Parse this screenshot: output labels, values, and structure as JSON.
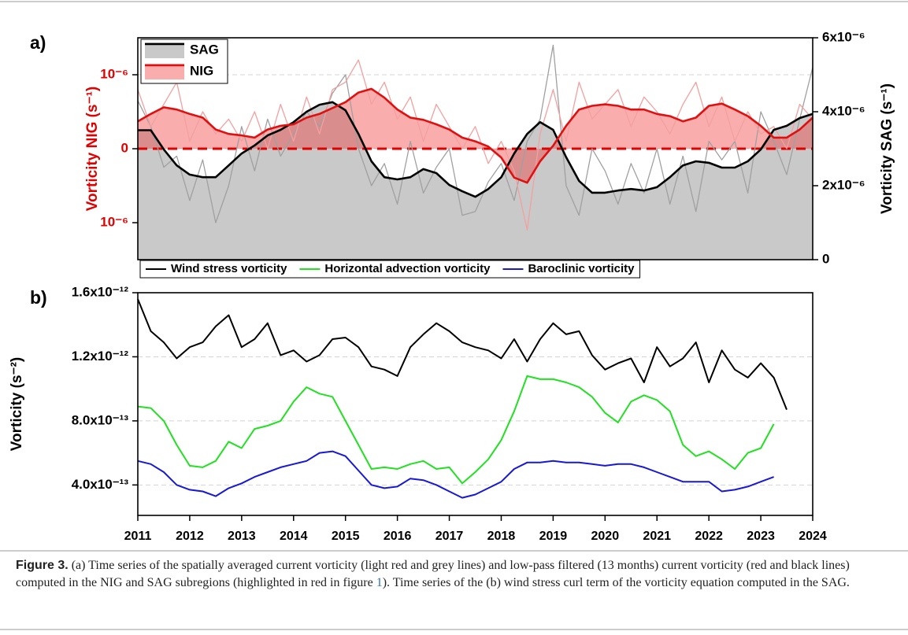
{
  "figure": {
    "caption": {
      "label": "Figure 3.",
      "text": "(a) Time series of the spatially averaged current vorticity (light red and grey lines) and low-pass filtered (13 months) current vorticity (red and black lines) computed in the NIG and SAG subregions (highlighted in red in figure ",
      "link": "1",
      "text_end": "). Time series of the (b) wind stress curl term of the vorticity equation computed in the SAG."
    }
  },
  "chart_data": [
    {
      "type": "line",
      "label": "a)",
      "ylabel": "Vorticity NIG (s⁻¹)",
      "y2label": "Vorticity SAG (s⁻¹)",
      "ycolor": "#e00000",
      "x": [
        2011,
        2011.25,
        2011.5,
        2011.75,
        2012,
        2012.25,
        2012.5,
        2012.75,
        2013,
        2013.25,
        2013.5,
        2013.75,
        2014,
        2014.25,
        2014.5,
        2014.75,
        2015,
        2015.25,
        2015.5,
        2015.75,
        2016,
        2016.25,
        2016.5,
        2016.75,
        2017,
        2017.25,
        2017.5,
        2017.75,
        2018,
        2018.25,
        2018.5,
        2018.75,
        2019,
        2019.25,
        2019.5,
        2019.75,
        2020,
        2020.25,
        2020.5,
        2020.75,
        2021,
        2021.25,
        2021.5,
        2021.75,
        2022,
        2022.25,
        2022.5,
        2022.75,
        2023,
        2023.25,
        2023.5,
        2023.75,
        2024
      ],
      "xlim": [
        2011,
        2024
      ],
      "ylim": [
        -1.5e-06,
        1.5e-06
      ],
      "yticks": [
        {
          "value": 1e-06,
          "label": "10⁻⁶"
        },
        0,
        {
          "value": -1e-06,
          "label": "10⁻⁶"
        }
      ],
      "y2lim": [
        0,
        6e-06
      ],
      "y2ticks": [
        0,
        {
          "value": 2e-06,
          "label": "2x10⁻⁶"
        },
        {
          "value": 4e-06,
          "label": "4x10⁻⁶"
        },
        {
          "value": 6e-06,
          "label": "6x10⁻⁶"
        }
      ],
      "grid": true,
      "legend": "upper left",
      "reference_line": {
        "value": 0,
        "color": "#e00000"
      },
      "series": [
        {
          "color": "#a0a0a0",
          "line_width": 1.3,
          "axis": "y2",
          "values": [
            4.3e-06,
            3.6e-06,
            2.5e-06,
            2.8e-06,
            1.6e-06,
            2.7e-06,
            1e-06,
            2e-06,
            3.6e-06,
            2.4e-06,
            3.8e-06,
            2.8e-06,
            3.4e-06,
            4e-06,
            3.6e-06,
            4.5e-06,
            5e-06,
            3e-06,
            2e-06,
            2.6e-06,
            1.5e-06,
            3.2e-06,
            1.8e-06,
            2.5e-06,
            3e-06,
            1.2e-06,
            1.3e-06,
            2.1e-06,
            2.6e-06,
            1.6e-06,
            3.2e-06,
            3.8e-06,
            5.8e-06,
            2e-06,
            1.2e-06,
            3e-06,
            2.4e-06,
            1.5e-06,
            2.6e-06,
            1.8e-06,
            3e-06,
            1.5e-06,
            2.8e-06,
            1.3e-06,
            3.2e-06,
            2.7e-06,
            3.2e-06,
            1.8e-06,
            4e-06,
            3.2e-06,
            2.3e-06,
            3.8e-06,
            5.2e-06
          ]
        },
        {
          "color": "#f2a0a0",
          "line_width": 1.3,
          "values": [
            8e-07,
            3e-07,
            6e-07,
            9e-07,
            1e-07,
            5e-07,
            2e-07,
            4e-07,
            1e-07,
            5e-07,
            0.0,
            6e-07,
            1e-07,
            7e-07,
            2e-07,
            8e-07,
            9e-07,
            1.2e-06,
            6e-07,
            9e-07,
            4e-07,
            7e-07,
            1e-07,
            6e-07,
            3e-07,
            0.0,
            3e-07,
            -2e-07,
            1e-07,
            -3e-07,
            -1.1e-06,
            2e-07,
            8e-07,
            1e-07,
            9e-07,
            4e-07,
            6e-07,
            8e-07,
            3e-07,
            7e-07,
            5e-07,
            2e-07,
            6e-07,
            9e-07,
            3e-07,
            7e-07,
            1e-07,
            5e-07,
            2e-07,
            3e-07,
            0.0,
            6e-07,
            4e-07
          ]
        },
        {
          "name": "SAG",
          "color": "#000000",
          "line_width": 2.6,
          "fill": "#c9c9c9",
          "fill_to": 0,
          "axis": "y2",
          "values": [
            3.5e-06,
            3.5e-06,
            2.98e-06,
            2.55e-06,
            2.3e-06,
            2.23e-06,
            2.23e-06,
            2.55e-06,
            2.87e-06,
            3.09e-06,
            3.36e-06,
            3.51e-06,
            3.72e-06,
            4e-06,
            4.19e-06,
            4.26e-06,
            4.04e-06,
            3.4e-06,
            2.66e-06,
            2.23e-06,
            2.17e-06,
            2.23e-06,
            2.45e-06,
            2.34e-06,
            2.02e-06,
            1.85e-06,
            1.7e-06,
            1.91e-06,
            2.23e-06,
            2.87e-06,
            3.4e-06,
            3.72e-06,
            3.51e-06,
            2.77e-06,
            2.13e-06,
            1.81e-06,
            1.81e-06,
            1.87e-06,
            1.91e-06,
            1.87e-06,
            1.96e-06,
            2.23e-06,
            2.55e-06,
            2.66e-06,
            2.62e-06,
            2.49e-06,
            2.49e-06,
            2.66e-06,
            2.98e-06,
            3.51e-06,
            3.62e-06,
            3.83e-06,
            3.94e-06
          ]
        },
        {
          "name": "NIG",
          "color": "#e01010",
          "line_width": 2.6,
          "fill": "rgba(240,60,60,0.42)",
          "fill_to": 0,
          "values": [
            3.7e-07,
            4.7e-07,
            5.6e-07,
            5.3e-07,
            4.7e-07,
            4.2e-07,
            2.6e-07,
            2e-07,
            1.8e-07,
            1.5e-07,
            2.6e-07,
            3.1e-07,
            3.3e-07,
            4.2e-07,
            4.7e-07,
            5.5e-07,
            6.3e-07,
            7.6e-07,
            8.1e-07,
            6.9e-07,
            5.3e-07,
            4.2e-07,
            3.9e-07,
            3.3e-07,
            2.6e-07,
            1.5e-07,
            1e-07,
            3e-08,
            -1.2e-07,
            -3.9e-07,
            -4.6e-07,
            -1.7e-07,
            4e-08,
            3.1e-07,
            5.3e-07,
            5.8e-07,
            6e-07,
            5.8e-07,
            5.3e-07,
            5.3e-07,
            4.7e-07,
            4.4e-07,
            3.7e-07,
            4.2e-07,
            5.8e-07,
            6.1e-07,
            5.3e-07,
            4.4e-07,
            3.1e-07,
            1.5e-07,
            1.5e-07,
            2.6e-07,
            4.2e-07
          ]
        }
      ]
    },
    {
      "type": "line",
      "label": "b)",
      "ylabel": "Vorticity (s⁻²)",
      "x": [
        2011,
        2011.25,
        2011.5,
        2011.75,
        2012,
        2012.25,
        2012.5,
        2012.75,
        2013,
        2013.25,
        2013.5,
        2013.75,
        2014,
        2014.25,
        2014.5,
        2014.75,
        2015,
        2015.25,
        2015.5,
        2015.75,
        2016,
        2016.25,
        2016.5,
        2016.75,
        2017,
        2017.25,
        2017.5,
        2017.75,
        2018,
        2018.25,
        2018.5,
        2018.75,
        2019,
        2019.25,
        2019.5,
        2019.75,
        2020,
        2020.25,
        2020.5,
        2020.75,
        2021,
        2021.25,
        2021.5,
        2021.75,
        2022,
        2022.25,
        2022.5,
        2022.75,
        2023,
        2023.25,
        2023.5
      ],
      "xlim": [
        2011,
        2024
      ],
      "xticks": [
        2011,
        2012,
        2013,
        2014,
        2015,
        2016,
        2017,
        2018,
        2019,
        2020,
        2021,
        2022,
        2023,
        2024
      ],
      "ylim": [
        2.1e-13,
        1.6e-12
      ],
      "yticks": [
        {
          "value": 4e-13,
          "label": "4.0x10⁻¹³"
        },
        {
          "value": 8e-13,
          "label": "8.0x10⁻¹³"
        },
        {
          "value": 1.2e-12,
          "label": "1.2x10⁻¹²"
        },
        {
          "value": 1.6e-12,
          "label": "1.6x10⁻¹²"
        }
      ],
      "grid": true,
      "legend": "top",
      "series": [
        {
          "name": "Wind stress vorticity",
          "color": "#000000",
          "line_width": 2,
          "values": [
            1.56e-12,
            1.36e-12,
            1.29e-12,
            1.19e-12,
            1.26e-12,
            1.29e-12,
            1.39e-12,
            1.46e-12,
            1.26e-12,
            1.31e-12,
            1.41e-12,
            1.21e-12,
            1.24e-12,
            1.17e-12,
            1.21e-12,
            1.31e-12,
            1.32e-12,
            1.26e-12,
            1.14e-12,
            1.12e-12,
            1.08e-12,
            1.26e-12,
            1.34e-12,
            1.41e-12,
            1.36e-12,
            1.29e-12,
            1.26e-12,
            1.24e-12,
            1.19e-12,
            1.31e-12,
            1.17e-12,
            1.31e-12,
            1.41e-12,
            1.34e-12,
            1.36e-12,
            1.21e-12,
            1.12e-12,
            1.16e-12,
            1.19e-12,
            1.04e-12,
            1.26e-12,
            1.14e-12,
            1.19e-12,
            1.29e-12,
            1.04e-12,
            1.24e-12,
            1.12e-12,
            1.07e-12,
            1.16e-12,
            1.07e-12,
            8.7e-13
          ]
        },
        {
          "name": "Horizontal advection vorticity",
          "color": "#22e022",
          "line_width": 2,
          "values": [
            8.9e-13,
            8.8e-13,
            8e-13,
            6.5e-13,
            5.2e-13,
            5.1e-13,
            5.5e-13,
            6.7e-13,
            6.3e-13,
            7.5e-13,
            7.7e-13,
            8e-13,
            9.2e-13,
            1.01e-12,
            9.7e-13,
            9.5e-13,
            8e-13,
            6.5e-13,
            5e-13,
            5.1e-13,
            5e-13,
            5.3e-13,
            5.5e-13,
            5e-13,
            5.1e-13,
            4.1e-13,
            4.8e-13,
            5.6e-13,
            6.8e-13,
            8.6e-13,
            1.08e-12,
            1.06e-12,
            1.06e-12,
            1.04e-12,
            1.01e-12,
            9.5e-13,
            8.5e-13,
            7.9e-13,
            9.2e-13,
            9.6e-13,
            9.3e-13,
            8.6e-13,
            6.5e-13,
            5.8e-13,
            6.1e-13,
            5.6e-13,
            5e-13,
            6e-13,
            6.3e-13,
            7.8e-13,
            null
          ]
        },
        {
          "name": "Baroclinic vorticity",
          "color": "#1818d8",
          "line_width": 2,
          "values": [
            5.5e-13,
            5.3e-13,
            4.8e-13,
            4e-13,
            3.7e-13,
            3.6e-13,
            3.3e-13,
            3.8e-13,
            4.1e-13,
            4.5e-13,
            4.8e-13,
            5.1e-13,
            5.3e-13,
            5.5e-13,
            6e-13,
            6.1e-13,
            5.8e-13,
            4.9e-13,
            4e-13,
            3.8e-13,
            3.9e-13,
            4.4e-13,
            4.3e-13,
            4e-13,
            3.6e-13,
            3.2e-13,
            3.4e-13,
            3.8e-13,
            4.2e-13,
            5e-13,
            5.4e-13,
            5.4e-13,
            5.5e-13,
            5.4e-13,
            5.4e-13,
            5.3e-13,
            5.2e-13,
            5.3e-13,
            5.3e-13,
            5.1e-13,
            4.8e-13,
            4.5e-13,
            4.2e-13,
            4.2e-13,
            4.2e-13,
            3.6e-13,
            3.7e-13,
            3.9e-13,
            4.2e-13,
            4.5e-13,
            null
          ]
        }
      ]
    }
  ]
}
